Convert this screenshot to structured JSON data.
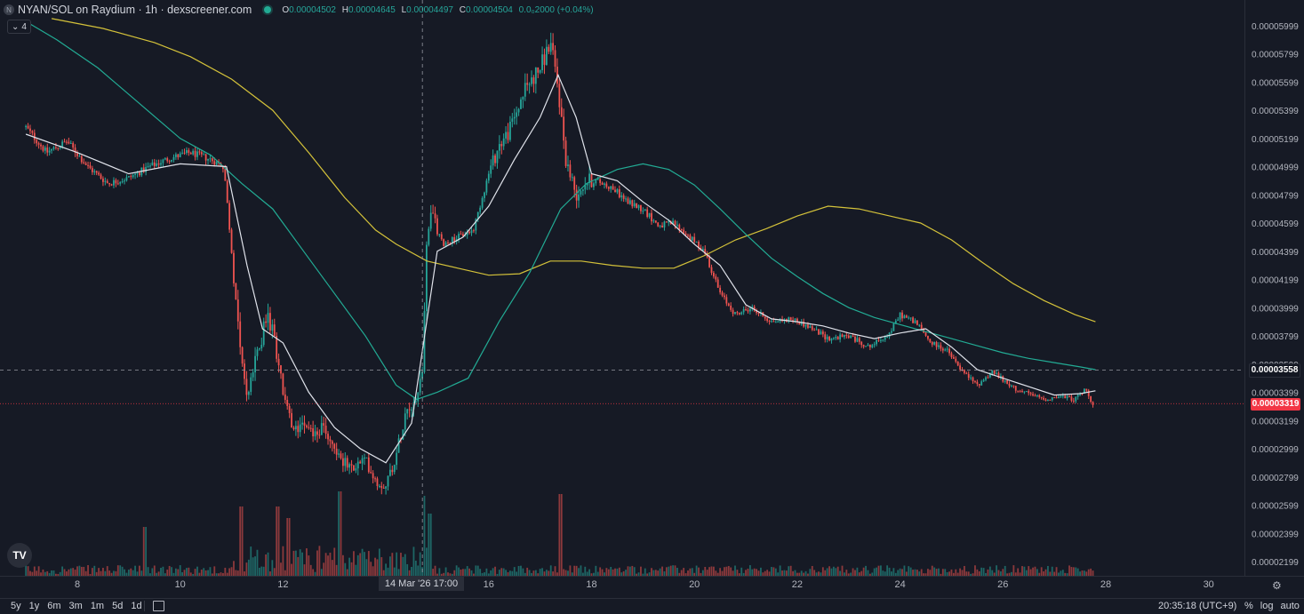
{
  "header": {
    "symbol_icon": "N",
    "title": "NYAN/SOL on Raydium · 1h · dexscreener.com",
    "ohlc": [
      {
        "k": "O",
        "v": "0.00004502"
      },
      {
        "k": "H",
        "v": "0.00004645"
      },
      {
        "k": "L",
        "v": "0.00004497"
      },
      {
        "k": "C",
        "v": "0.00004504"
      }
    ],
    "change": "0.0₀2000 (+0.04%)",
    "indicators_count": "4"
  },
  "price_labels": {
    "current": "0.00003558",
    "last": "0.00003319"
  },
  "crosshair": {
    "time_label": "14 Mar '26  17:00"
  },
  "bottom": {
    "ranges": [
      "5y",
      "1y",
      "6m",
      "3m",
      "1m",
      "5d",
      "1d"
    ],
    "clock": "20:35:18 (UTC+9)",
    "pct": "%",
    "log": "log",
    "auto": "auto"
  },
  "colors": {
    "up": "#26a69a",
    "down": "#ef5350",
    "bg": "#161a25",
    "ma_white": "#e0e3eb",
    "ma_teal": "#22ab94",
    "ma_yellow": "#d4c23a"
  },
  "icons": [
    "tradingview-logo-icon",
    "gear-icon",
    "calendar-icon",
    "chevron-down-icon"
  ],
  "chart_data": {
    "type": "candlestick",
    "title": "NYAN/SOL on Raydium · 1h · dexscreener.com",
    "x_tick_labels": [
      "8",
      "10",
      "12",
      "14 Mar '26",
      "16",
      "18",
      "20",
      "22",
      "24",
      "26",
      "28",
      "30"
    ],
    "x_tick_days": [
      8,
      10,
      12,
      14,
      16,
      18,
      20,
      22,
      24,
      26,
      28,
      30
    ],
    "y_tick_labels": [
      "0.00005999",
      "0.00005799",
      "0.00005599",
      "0.00005399",
      "0.00005199",
      "0.00004999",
      "0.00004799",
      "0.00004599",
      "0.00004399",
      "0.00004199",
      "0.00003999",
      "0.00003799",
      "0.00003599",
      "0.00003399",
      "0.00003199",
      "0.00002999",
      "0.00002799",
      "0.00002599",
      "0.00002399",
      "0.00002199"
    ],
    "ylim": [
      2.14e-05,
      6.07e-05
    ],
    "crosshair": {
      "x_day": 14.71,
      "y": 3.558e-05
    },
    "last_price": 3.319e-05,
    "close_path_anchors": [
      [
        7.0,
        5.28e-05
      ],
      [
        7.4,
        5.1e-05
      ],
      [
        7.8,
        5.18e-05
      ],
      [
        8.2,
        5e-05
      ],
      [
        8.6,
        4.88e-05
      ],
      [
        9.0,
        4.92e-05
      ],
      [
        9.4,
        5e-05
      ],
      [
        9.8,
        5.06e-05
      ],
      [
        10.2,
        5.1e-05
      ],
      [
        10.6,
        5.05e-05
      ],
      [
        10.85,
        5e-05
      ],
      [
        11.0,
        4.4e-05
      ],
      [
        11.15,
        3.8e-05
      ],
      [
        11.3,
        3.35e-05
      ],
      [
        11.5,
        3.68e-05
      ],
      [
        11.7,
        3.95e-05
      ],
      [
        11.85,
        3.75e-05
      ],
      [
        12.0,
        3.4e-05
      ],
      [
        12.2,
        3.1e-05
      ],
      [
        12.4,
        3.22e-05
      ],
      [
        12.6,
        3.1e-05
      ],
      [
        12.8,
        3.15e-05
      ],
      [
        13.0,
        3e-05
      ],
      [
        13.3,
        2.85e-05
      ],
      [
        13.6,
        2.92e-05
      ],
      [
        13.85,
        2.75e-05
      ],
      [
        14.0,
        2.75e-05
      ],
      [
        14.2,
        2.95e-05
      ],
      [
        14.4,
        3.3e-05
      ],
      [
        14.6,
        3.35e-05
      ],
      [
        14.72,
        3.6e-05
      ],
      [
        14.8,
        4.55e-05
      ],
      [
        14.9,
        4.65e-05
      ],
      [
        15.1,
        4.45e-05
      ],
      [
        15.4,
        4.5e-05
      ],
      [
        15.7,
        4.55e-05
      ],
      [
        16.0,
        4.95e-05
      ],
      [
        16.2,
        5.15e-05
      ],
      [
        16.4,
        5.25e-05
      ],
      [
        16.7,
        5.55e-05
      ],
      [
        17.0,
        5.7e-05
      ],
      [
        17.2,
        5.88e-05
      ],
      [
        17.35,
        5.55e-05
      ],
      [
        17.5,
        5.05e-05
      ],
      [
        17.7,
        4.8e-05
      ],
      [
        17.9,
        4.9e-05
      ],
      [
        18.1,
        4.9e-05
      ],
      [
        18.4,
        4.85e-05
      ],
      [
        18.7,
        4.75e-05
      ],
      [
        19.0,
        4.7e-05
      ],
      [
        19.3,
        4.58e-05
      ],
      [
        19.6,
        4.6e-05
      ],
      [
        19.9,
        4.5e-05
      ],
      [
        20.2,
        4.4e-05
      ],
      [
        20.5,
        4.1e-05
      ],
      [
        20.8,
        3.95e-05
      ],
      [
        21.1,
        4e-05
      ],
      [
        21.5,
        3.9e-05
      ],
      [
        21.9,
        3.92e-05
      ],
      [
        22.3,
        3.85e-05
      ],
      [
        22.6,
        3.78e-05
      ],
      [
        23.0,
        3.8e-05
      ],
      [
        23.4,
        3.72e-05
      ],
      [
        23.8,
        3.82e-05
      ],
      [
        24.0,
        3.95e-05
      ],
      [
        24.3,
        3.9e-05
      ],
      [
        24.6,
        3.75e-05
      ],
      [
        24.9,
        3.7e-05
      ],
      [
        25.2,
        3.55e-05
      ],
      [
        25.5,
        3.45e-05
      ],
      [
        25.8,
        3.55e-05
      ],
      [
        26.1,
        3.45e-05
      ],
      [
        26.4,
        3.4e-05
      ],
      [
        26.8,
        3.35e-05
      ],
      [
        27.1,
        3.37e-05
      ],
      [
        27.4,
        3.35e-05
      ],
      [
        27.6,
        3.42e-05
      ],
      [
        27.75,
        3.32e-05
      ]
    ],
    "ma_white": [
      [
        7.0,
        5.23e-05
      ],
      [
        8.0,
        5.1e-05
      ],
      [
        9.0,
        4.95e-05
      ],
      [
        10.0,
        5.02e-05
      ],
      [
        10.9,
        5e-05
      ],
      [
        11.3,
        4.3e-05
      ],
      [
        11.6,
        3.85e-05
      ],
      [
        12.0,
        3.75e-05
      ],
      [
        12.5,
        3.4e-05
      ],
      [
        13.0,
        3.15e-05
      ],
      [
        13.5,
        3e-05
      ],
      [
        14.0,
        2.9e-05
      ],
      [
        14.5,
        3.18e-05
      ],
      [
        15.0,
        4.4e-05
      ],
      [
        15.5,
        4.5e-05
      ],
      [
        16.0,
        4.72e-05
      ],
      [
        16.5,
        5.05e-05
      ],
      [
        17.0,
        5.35e-05
      ],
      [
        17.35,
        5.65e-05
      ],
      [
        17.7,
        5.35e-05
      ],
      [
        18.0,
        4.95e-05
      ],
      [
        18.5,
        4.9e-05
      ],
      [
        19.0,
        4.75e-05
      ],
      [
        19.5,
        4.62e-05
      ],
      [
        20.0,
        4.45e-05
      ],
      [
        20.5,
        4.3e-05
      ],
      [
        21.0,
        4.02e-05
      ],
      [
        21.5,
        3.92e-05
      ],
      [
        22.0,
        3.9e-05
      ],
      [
        22.5,
        3.87e-05
      ],
      [
        23.0,
        3.82e-05
      ],
      [
        23.5,
        3.78e-05
      ],
      [
        24.0,
        3.82e-05
      ],
      [
        24.5,
        3.85e-05
      ],
      [
        25.0,
        3.72e-05
      ],
      [
        25.5,
        3.56e-05
      ],
      [
        26.0,
        3.5e-05
      ],
      [
        26.5,
        3.44e-05
      ],
      [
        27.0,
        3.38e-05
      ],
      [
        27.5,
        3.39e-05
      ],
      [
        27.8,
        3.41e-05
      ]
    ],
    "ma_teal": [
      [
        7.0,
        6.03e-05
      ],
      [
        7.6,
        5.9e-05
      ],
      [
        8.4,
        5.7e-05
      ],
      [
        9.2,
        5.45e-05
      ],
      [
        10.0,
        5.2e-05
      ],
      [
        10.6,
        5.08e-05
      ],
      [
        11.2,
        4.88e-05
      ],
      [
        11.8,
        4.7e-05
      ],
      [
        12.4,
        4.4e-05
      ],
      [
        13.0,
        4.1e-05
      ],
      [
        13.6,
        3.8e-05
      ],
      [
        14.2,
        3.45e-05
      ],
      [
        14.6,
        3.35e-05
      ],
      [
        15.0,
        3.4e-05
      ],
      [
        15.6,
        3.5e-05
      ],
      [
        16.2,
        3.9e-05
      ],
      [
        16.8,
        4.25e-05
      ],
      [
        17.4,
        4.7e-05
      ],
      [
        17.9,
        4.88e-05
      ],
      [
        18.5,
        4.98e-05
      ],
      [
        19.0,
        5.02e-05
      ],
      [
        19.5,
        4.98e-05
      ],
      [
        20.0,
        4.87e-05
      ],
      [
        20.5,
        4.7e-05
      ],
      [
        21.0,
        4.52e-05
      ],
      [
        21.5,
        4.35e-05
      ],
      [
        22.0,
        4.22e-05
      ],
      [
        22.5,
        4.1e-05
      ],
      [
        23.0,
        4e-05
      ],
      [
        23.5,
        3.93e-05
      ],
      [
        24.0,
        3.88e-05
      ],
      [
        24.5,
        3.83e-05
      ],
      [
        25.0,
        3.78e-05
      ],
      [
        25.5,
        3.73e-05
      ],
      [
        26.0,
        3.68e-05
      ],
      [
        26.5,
        3.64e-05
      ],
      [
        27.0,
        3.61e-05
      ],
      [
        27.5,
        3.58e-05
      ],
      [
        27.8,
        3.56e-05
      ]
    ],
    "ma_yellow": [
      [
        7.5,
        6.05e-05
      ],
      [
        8.5,
        5.98e-05
      ],
      [
        9.5,
        5.88e-05
      ],
      [
        10.2,
        5.78e-05
      ],
      [
        11.0,
        5.62e-05
      ],
      [
        11.8,
        5.4e-05
      ],
      [
        12.5,
        5.1e-05
      ],
      [
        13.2,
        4.78e-05
      ],
      [
        13.8,
        4.55e-05
      ],
      [
        14.2,
        4.45e-05
      ],
      [
        14.8,
        4.33e-05
      ],
      [
        15.4,
        4.28e-05
      ],
      [
        16.0,
        4.23e-05
      ],
      [
        16.6,
        4.24e-05
      ],
      [
        17.2,
        4.33e-05
      ],
      [
        17.8,
        4.33e-05
      ],
      [
        18.4,
        4.3e-05
      ],
      [
        19.0,
        4.28e-05
      ],
      [
        19.6,
        4.28e-05
      ],
      [
        20.2,
        4.37e-05
      ],
      [
        20.8,
        4.48e-05
      ],
      [
        21.4,
        4.56e-05
      ],
      [
        22.0,
        4.65e-05
      ],
      [
        22.6,
        4.72e-05
      ],
      [
        23.2,
        4.7e-05
      ],
      [
        23.8,
        4.65e-05
      ],
      [
        24.4,
        4.6e-05
      ],
      [
        25.0,
        4.48e-05
      ],
      [
        25.6,
        4.32e-05
      ],
      [
        26.2,
        4.17e-05
      ],
      [
        26.8,
        4.05e-05
      ],
      [
        27.4,
        3.95e-05
      ],
      [
        27.8,
        3.9e-05
      ]
    ]
  }
}
